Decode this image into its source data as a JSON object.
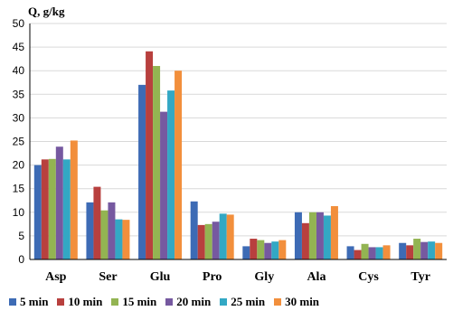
{
  "chart_data": {
    "type": "bar",
    "ylabel": "Q, g/kg",
    "ylim": [
      0,
      50
    ],
    "yticks": [
      0,
      5,
      10,
      15,
      20,
      25,
      30,
      35,
      40,
      45,
      50
    ],
    "grid": "horizontal",
    "legend_position": "bottom",
    "categories": [
      "Asp",
      "Ser",
      "Glu",
      "Pro",
      "Gly",
      "Ala",
      "Cys",
      "Tyr"
    ],
    "series": [
      {
        "name": "5 min",
        "color": "#3d6bb5",
        "values": [
          20.0,
          12.1,
          37.0,
          12.3,
          2.8,
          10.0,
          2.8,
          3.5
        ]
      },
      {
        "name": "10 min",
        "color": "#b8403e",
        "values": [
          21.2,
          15.4,
          44.1,
          7.3,
          4.4,
          7.7,
          2.0,
          3.0
        ]
      },
      {
        "name": "15 min",
        "color": "#93b452",
        "values": [
          21.3,
          10.4,
          41.0,
          7.5,
          4.1,
          10.0,
          3.3,
          4.4
        ]
      },
      {
        "name": "20 min",
        "color": "#7659a0",
        "values": [
          23.9,
          12.1,
          31.3,
          8.0,
          3.5,
          10.0,
          2.6,
          3.7
        ]
      },
      {
        "name": "25 min",
        "color": "#33a8c4",
        "values": [
          21.2,
          8.5,
          35.8,
          9.7,
          3.8,
          9.3,
          2.6,
          3.8
        ]
      },
      {
        "name": "30 min",
        "color": "#f28f3c",
        "values": [
          25.2,
          8.4,
          40.0,
          9.5,
          4.1,
          11.3,
          3.0,
          3.5
        ]
      }
    ]
  }
}
